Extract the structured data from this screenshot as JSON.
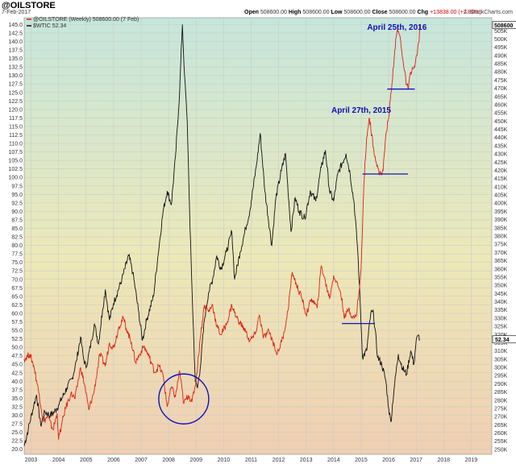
{
  "header": {
    "title": "@OILSTORE",
    "date": "7-Feb-2017",
    "open_label": "Open",
    "open_value": "508600.00",
    "high_label": "High",
    "high_value": "508600.00",
    "low_label": "Low",
    "low_value": "508600.00",
    "close_label": "Close",
    "close_value": "508600.00",
    "chg_label": "Chg",
    "chg_value": "+13838.00 (+2.80%)",
    "brand": "© StockCharts.com"
  },
  "colors": {
    "bg_top": "#c6e6dc",
    "bg_mid": "#ece8b8",
    "bg_bottom": "#efcfb2",
    "oilstore": "#e02010",
    "wtic": "#111111",
    "annotation": "#1010c0"
  },
  "chart_data": {
    "type": "line",
    "title": "@OILSTORE",
    "grid": true,
    "legend_placement": "top-left",
    "legend": [
      {
        "label": "@OILSTORE (Weekly) 508600.00 (7 Feb)",
        "color": "#e02010",
        "series": "oilstore"
      },
      {
        "label": "$WTIC 52.34",
        "color": "#111111",
        "series": "wtic"
      }
    ],
    "x_axis": {
      "range": [
        2002.75,
        2019.75
      ],
      "ticks": [
        "2003",
        "2004",
        "2005",
        "2006",
        "2007",
        "2008",
        "2009",
        "2010",
        "2011",
        "2012",
        "2013",
        "2014",
        "2015",
        "2016",
        "2017",
        "2018",
        "2019"
      ]
    },
    "left_axis": {
      "range": [
        18.5,
        147.0
      ],
      "ticks": [
        "20.0",
        "22.5",
        "25.0",
        "27.5",
        "30.0",
        "32.5",
        "35.0",
        "37.5",
        "40.0",
        "42.5",
        "45.0",
        "47.5",
        "50.0",
        "52.5",
        "55.0",
        "57.5",
        "60.0",
        "62.5",
        "65.0",
        "67.5",
        "70.0",
        "72.5",
        "75.0",
        "77.5",
        "80.0",
        "82.5",
        "85.0",
        "87.5",
        "90.0",
        "92.5",
        "95.0",
        "97.5",
        "100.0",
        "102.5",
        "105.0",
        "107.5",
        "110.0",
        "112.5",
        "115.0",
        "117.5",
        "120.0",
        "122.5",
        "125.0",
        "127.5",
        "130.0",
        "132.5",
        "135.0",
        "137.5",
        "140.0",
        "142.5",
        "145.0"
      ]
    },
    "right_axis": {
      "range": [
        247000,
        513000
      ],
      "ticks": [
        "250K",
        "255K",
        "260K",
        "265K",
        "270K",
        "275K",
        "280K",
        "285K",
        "290K",
        "295K",
        "300K",
        "305K",
        "310K",
        "315K",
        "320K",
        "325K",
        "330K",
        "335K",
        "340K",
        "345K",
        "350K",
        "355K",
        "360K",
        "365K",
        "370K",
        "375K",
        "380K",
        "385K",
        "390K",
        "395K",
        "400K",
        "405K",
        "410K",
        "415K",
        "420K",
        "425K",
        "430K",
        "435K",
        "440K",
        "445K",
        "450K",
        "455K",
        "460K",
        "465K",
        "470K",
        "475K",
        "480K",
        "485K",
        "490K",
        "495K",
        "500K",
        "505K"
      ]
    },
    "series": [
      {
        "name": "$WTIC",
        "axis": "left",
        "points": [
          [
            2002.75,
            21.0
          ],
          [
            2002.9,
            26.0
          ],
          [
            2003.1,
            33.0
          ],
          [
            2003.2,
            36.0
          ],
          [
            2003.35,
            27.0
          ],
          [
            2003.5,
            31.0
          ],
          [
            2003.7,
            30.0
          ],
          [
            2003.85,
            31.0
          ],
          [
            2004.0,
            33.0
          ],
          [
            2004.3,
            38.0
          ],
          [
            2004.5,
            41.0
          ],
          [
            2004.65,
            46.0
          ],
          [
            2004.8,
            53.0
          ],
          [
            2004.9,
            47.0
          ],
          [
            2005.0,
            44.0
          ],
          [
            2005.2,
            52.0
          ],
          [
            2005.3,
            57.0
          ],
          [
            2005.45,
            51.0
          ],
          [
            2005.6,
            61.0
          ],
          [
            2005.7,
            67.0
          ],
          [
            2005.85,
            58.0
          ],
          [
            2006.0,
            63.0
          ],
          [
            2006.3,
            70.0
          ],
          [
            2006.55,
            77.0
          ],
          [
            2006.7,
            72.0
          ],
          [
            2006.9,
            61.0
          ],
          [
            2007.05,
            52.0
          ],
          [
            2007.2,
            58.0
          ],
          [
            2007.45,
            65.0
          ],
          [
            2007.6,
            76.0
          ],
          [
            2007.8,
            90.0
          ],
          [
            2007.95,
            96.0
          ],
          [
            2008.1,
            92.0
          ],
          [
            2008.25,
            106.0
          ],
          [
            2008.4,
            125.0
          ],
          [
            2008.5,
            145.0
          ],
          [
            2008.58,
            130.0
          ],
          [
            2008.68,
            116.0
          ],
          [
            2008.78,
            85.0
          ],
          [
            2008.88,
            60.0
          ],
          [
            2008.97,
            40.0
          ],
          [
            2009.05,
            38.0
          ],
          [
            2009.15,
            44.0
          ],
          [
            2009.3,
            58.0
          ],
          [
            2009.45,
            66.0
          ],
          [
            2009.6,
            70.0
          ],
          [
            2009.75,
            77.0
          ],
          [
            2009.9,
            73.0
          ],
          [
            2010.1,
            78.0
          ],
          [
            2010.3,
            84.0
          ],
          [
            2010.4,
            70.0
          ],
          [
            2010.6,
            78.0
          ],
          [
            2010.8,
            85.0
          ],
          [
            2010.95,
            90.0
          ],
          [
            2011.2,
            104.0
          ],
          [
            2011.33,
            113.0
          ],
          [
            2011.5,
            96.0
          ],
          [
            2011.75,
            80.0
          ],
          [
            2011.9,
            94.0
          ],
          [
            2012.1,
            102.0
          ],
          [
            2012.25,
            107.0
          ],
          [
            2012.45,
            84.0
          ],
          [
            2012.6,
            94.0
          ],
          [
            2012.75,
            90.0
          ],
          [
            2012.95,
            88.0
          ],
          [
            2013.15,
            96.0
          ],
          [
            2013.35,
            93.0
          ],
          [
            2013.55,
            103.0
          ],
          [
            2013.7,
            108.0
          ],
          [
            2013.85,
            96.0
          ],
          [
            2014.0,
            93.0
          ],
          [
            2014.15,
            101.0
          ],
          [
            2014.45,
            107.0
          ],
          [
            2014.6,
            101.0
          ],
          [
            2014.75,
            92.0
          ],
          [
            2014.88,
            78.0
          ],
          [
            2014.98,
            60.0
          ],
          [
            2015.05,
            47.0
          ],
          [
            2015.2,
            49.0
          ],
          [
            2015.35,
            60.0
          ],
          [
            2015.45,
            60.0
          ],
          [
            2015.6,
            47.0
          ],
          [
            2015.75,
            45.0
          ],
          [
            2015.9,
            40.0
          ],
          [
            2016.0,
            32.0
          ],
          [
            2016.08,
            28.0
          ],
          [
            2016.2,
            38.0
          ],
          [
            2016.35,
            48.0
          ],
          [
            2016.5,
            44.0
          ],
          [
            2016.65,
            42.0
          ],
          [
            2016.8,
            49.0
          ],
          [
            2016.92,
            45.0
          ],
          [
            2017.0,
            52.0
          ],
          [
            2017.1,
            53.5
          ],
          [
            2017.13,
            52.34
          ]
        ]
      },
      {
        "name": "@OILSTORE",
        "axis": "right",
        "points": [
          [
            2002.75,
            305000
          ],
          [
            2002.95,
            308000
          ],
          [
            2003.1,
            301000
          ],
          [
            2003.3,
            283000
          ],
          [
            2003.45,
            267000
          ],
          [
            2003.6,
            270000
          ],
          [
            2003.8,
            262000
          ],
          [
            2003.95,
            272000
          ],
          [
            2004.0,
            256000
          ],
          [
            2004.1,
            264000
          ],
          [
            2004.25,
            275000
          ],
          [
            2004.45,
            284000
          ],
          [
            2004.6,
            281000
          ],
          [
            2004.8,
            300000
          ],
          [
            2004.95,
            289000
          ],
          [
            2005.1,
            274000
          ],
          [
            2005.3,
            286000
          ],
          [
            2005.5,
            308000
          ],
          [
            2005.7,
            301000
          ],
          [
            2005.85,
            315000
          ],
          [
            2006.0,
            312000
          ],
          [
            2006.2,
            325000
          ],
          [
            2006.35,
            330000
          ],
          [
            2006.5,
            322000
          ],
          [
            2006.65,
            315000
          ],
          [
            2006.8,
            303000
          ],
          [
            2006.95,
            308000
          ],
          [
            2007.1,
            313000
          ],
          [
            2007.3,
            306000
          ],
          [
            2007.5,
            297000
          ],
          [
            2007.65,
            301000
          ],
          [
            2007.8,
            295000
          ],
          [
            2007.95,
            276000
          ],
          [
            2008.1,
            288000
          ],
          [
            2008.25,
            282000
          ],
          [
            2008.4,
            298000
          ],
          [
            2008.55,
            278000
          ],
          [
            2008.72,
            283000
          ],
          [
            2008.85,
            279000
          ],
          [
            2009.0,
            292000
          ],
          [
            2009.15,
            318000
          ],
          [
            2009.3,
            338000
          ],
          [
            2009.45,
            334000
          ],
          [
            2009.6,
            338000
          ],
          [
            2009.75,
            325000
          ],
          [
            2009.9,
            320000
          ],
          [
            2010.1,
            326000
          ],
          [
            2010.3,
            338000
          ],
          [
            2010.45,
            331000
          ],
          [
            2010.6,
            327000
          ],
          [
            2010.8,
            322000
          ],
          [
            2010.95,
            316000
          ],
          [
            2011.15,
            320000
          ],
          [
            2011.3,
            332000
          ],
          [
            2011.45,
            318000
          ],
          [
            2011.65,
            322000
          ],
          [
            2011.85,
            313000
          ],
          [
            2011.95,
            308000
          ],
          [
            2012.15,
            318000
          ],
          [
            2012.3,
            330000
          ],
          [
            2012.5,
            358000
          ],
          [
            2012.65,
            350000
          ],
          [
            2012.85,
            342000
          ],
          [
            2013.0,
            332000
          ],
          [
            2013.2,
            342000
          ],
          [
            2013.4,
            336000
          ],
          [
            2013.55,
            362000
          ],
          [
            2013.7,
            352000
          ],
          [
            2013.85,
            342000
          ],
          [
            2014.0,
            356000
          ],
          [
            2014.15,
            350000
          ],
          [
            2014.25,
            346000
          ],
          [
            2014.4,
            330000
          ],
          [
            2014.55,
            336000
          ],
          [
            2014.7,
            330000
          ],
          [
            2014.82,
            331000
          ],
          [
            2014.92,
            346000
          ],
          [
            2015.0,
            360000
          ],
          [
            2015.1,
            412000
          ],
          [
            2015.2,
            440000
          ],
          [
            2015.3,
            452000
          ],
          [
            2015.45,
            434000
          ],
          [
            2015.55,
            425000
          ],
          [
            2015.65,
            418000
          ],
          [
            2015.8,
            420000
          ],
          [
            2015.9,
            442000
          ],
          [
            2016.0,
            452000
          ],
          [
            2016.12,
            473000
          ],
          [
            2016.22,
            493000
          ],
          [
            2016.32,
            506000
          ],
          [
            2016.43,
            500000
          ],
          [
            2016.55,
            483000
          ],
          [
            2016.65,
            472000
          ],
          [
            2016.72,
            470000
          ],
          [
            2016.8,
            480000
          ],
          [
            2016.88,
            482000
          ],
          [
            2016.95,
            483000
          ],
          [
            2017.02,
            490000
          ],
          [
            2017.1,
            498000
          ],
          [
            2017.13,
            508600
          ]
        ]
      }
    ],
    "annotations": [
      {
        "text": "April 25th, 2016",
        "x": 2016.3,
        "y": 143.5
      },
      {
        "text": "April 27th, 2015",
        "x": 2015.0,
        "y": 119.0
      }
    ],
    "value_tags": [
      {
        "series": "$WTIC",
        "text": "52.34"
      },
      {
        "series": "@OILSTORE",
        "text": "508600"
      }
    ],
    "support_lines": [
      {
        "axis": "left",
        "y": 126.0,
        "x": [
          2015.95,
          2016.95
        ]
      },
      {
        "axis": "left",
        "y": 101.0,
        "x": [
          2015.05,
          2016.7
        ]
      },
      {
        "axis": "left",
        "y": 57.0,
        "x": [
          2014.3,
          2015.5
        ]
      }
    ],
    "highlight_circle": {
      "x": 2008.55,
      "y": 34.8,
      "axis": "left"
    }
  }
}
